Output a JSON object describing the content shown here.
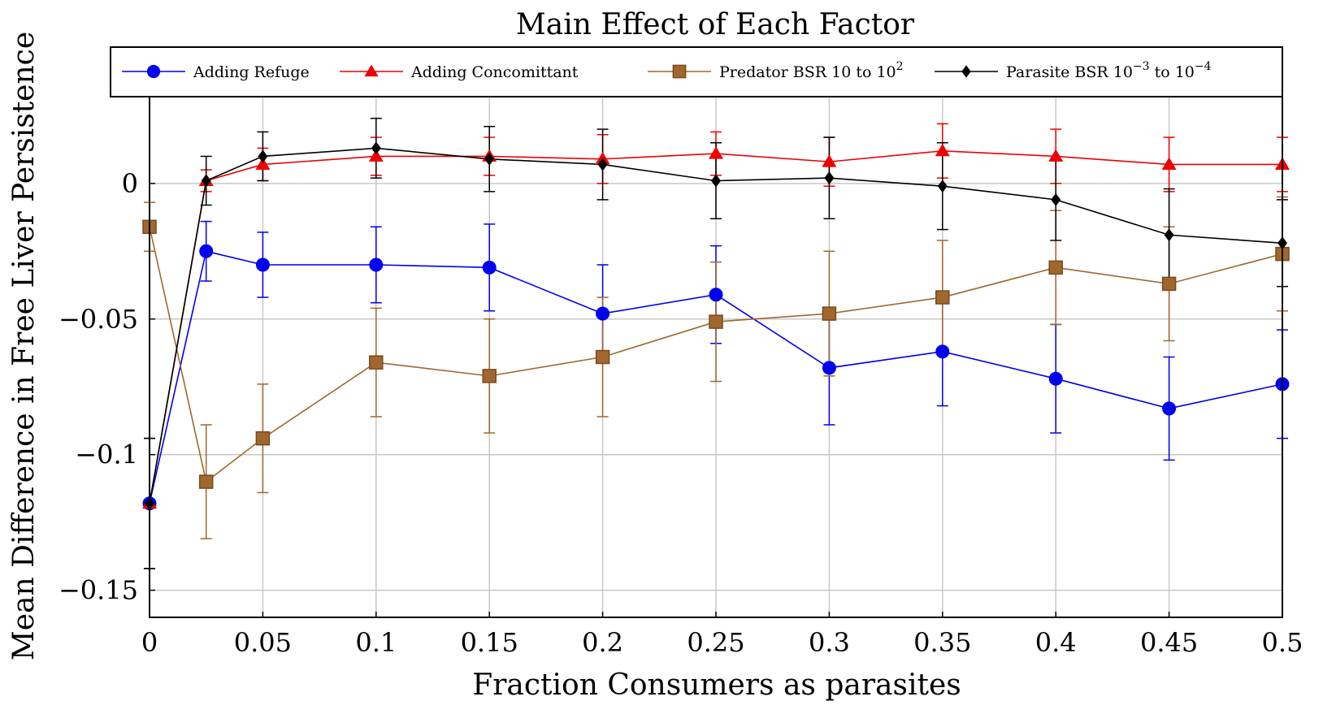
{
  "chart_data": {
    "type": "line",
    "title": "Main Effect of Each Factor",
    "xlabel": "Fraction Consumers as parasites",
    "ylabel": "Mean Difference in Free Liver Persistence",
    "x": [
      0,
      0.025,
      0.05,
      0.1,
      0.15,
      0.2,
      0.25,
      0.3,
      0.35,
      0.4,
      0.45,
      0.5
    ],
    "xticks": [
      0,
      0.05,
      0.1,
      0.15,
      0.2,
      0.25,
      0.3,
      0.35,
      0.4,
      0.45,
      0.5
    ],
    "xtick_labels": [
      "0",
      "0.05",
      "0.1",
      "0.15",
      "0.2",
      "0.25",
      "0.3",
      "0.35",
      "0.4",
      "0.45",
      "0.5"
    ],
    "yticks": [
      0,
      -0.05,
      -0.1,
      -0.15
    ],
    "ytick_labels": [
      "0",
      "−0.05",
      "−0.1",
      "−0.15"
    ],
    "xlim": [
      0,
      0.5
    ],
    "ylim": [
      -0.16,
      0.032
    ],
    "grid": true,
    "legend_position": "top",
    "series": [
      {
        "name": "Adding Refuge",
        "color": "#0000ee",
        "marker": "circle",
        "values": [
          -0.118,
          -0.025,
          -0.03,
          -0.03,
          -0.031,
          -0.048,
          -0.041,
          -0.068,
          -0.062,
          -0.072,
          -0.083,
          -0.074
        ],
        "error": [
          0.024,
          0.011,
          0.012,
          0.014,
          0.016,
          0.018,
          0.018,
          0.021,
          0.02,
          0.02,
          0.019,
          0.02
        ]
      },
      {
        "name": "Adding Concomittant",
        "color": "#ee0000",
        "marker": "triangle",
        "values": [
          -0.118,
          0.001,
          0.007,
          0.01,
          0.01,
          0.009,
          0.011,
          0.008,
          0.012,
          0.01,
          0.007,
          0.007
        ],
        "error": [
          0.024,
          0.004,
          0.006,
          0.007,
          0.007,
          0.009,
          0.008,
          0.009,
          0.01,
          0.01,
          0.01,
          0.01
        ]
      },
      {
        "name": "Predator BSR 10 to 10^2",
        "color": "#a0672e",
        "marker": "square",
        "values": [
          -0.016,
          -0.11,
          -0.094,
          -0.066,
          -0.071,
          -0.064,
          -0.051,
          -0.048,
          -0.042,
          -0.031,
          -0.037,
          -0.026
        ],
        "error": [
          0.009,
          0.021,
          0.02,
          0.02,
          0.021,
          0.022,
          0.022,
          0.023,
          0.021,
          0.021,
          0.021,
          0.021
        ]
      },
      {
        "name": "Parasite BSR 10^-3 to 10^-4",
        "color": "#000000",
        "marker": "diamond",
        "values": [
          -0.118,
          0.001,
          0.01,
          0.013,
          0.009,
          0.007,
          0.001,
          0.002,
          -0.001,
          -0.006,
          -0.019,
          -0.022
        ],
        "error": [
          0.024,
          0.009,
          0.009,
          0.011,
          0.012,
          0.013,
          0.014,
          0.015,
          0.016,
          0.015,
          0.017,
          0.016
        ]
      }
    ],
    "legend_labels": [
      {
        "text": "Adding Refuge"
      },
      {
        "text": "Adding Concomittant"
      },
      {
        "text": "Predator BSR 10 to 10",
        "sup": "2"
      },
      {
        "text": "Parasite BSR 10",
        "sup": "−3",
        "text2": " to 10",
        "sup2": "−4"
      }
    ]
  }
}
